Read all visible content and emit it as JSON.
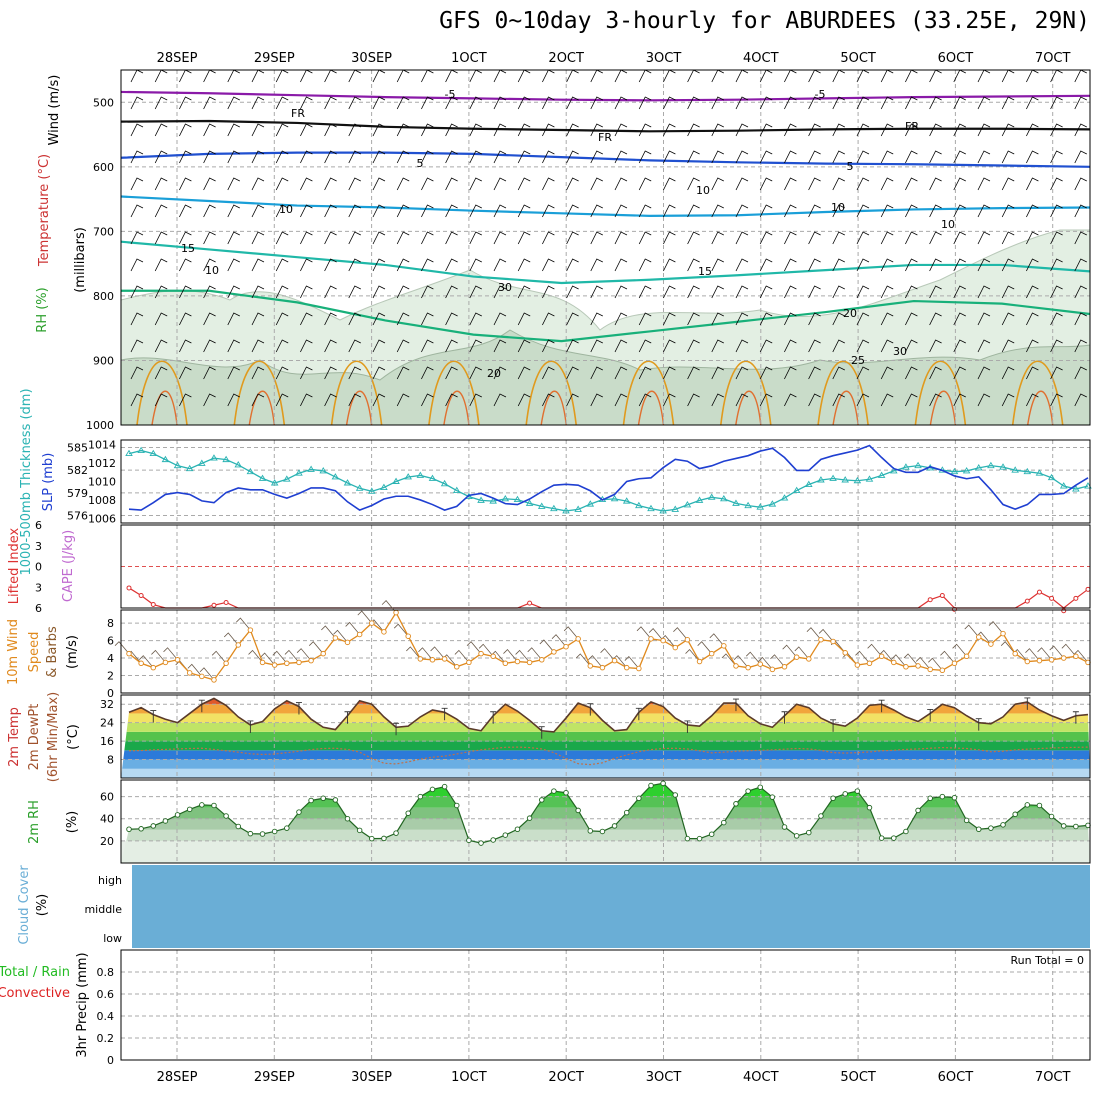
{
  "title": "GFS 0~10day 3-hourly for ABURDEES (33.25E, 29N)",
  "colors": {
    "wind": "#000000",
    "temperature": "#cc3333",
    "rh": "#2ca02c",
    "thickness": "#2ab3b3",
    "slp": "#1f3fd1",
    "lifted_index": "#dd3333",
    "cape": "#c06ad0",
    "wind10m": "#e08a1e",
    "dewpt": "#a0522d",
    "cloud": "#6aaed6",
    "precip_total": "#22bb22",
    "precip_convective": "#dd2222"
  },
  "chart_data": [
    {
      "id": "upper",
      "type": "heatmap",
      "ylabel_parts": [
        "Wind (m/s)",
        "Temperature (°C)",
        "RH (%)"
      ],
      "ylabel_unit": "(millibars)",
      "yticks": [
        "500",
        "600",
        "700",
        "800",
        "900",
        "1000"
      ],
      "ylim": [
        1000,
        450
      ],
      "x_dates": [
        "28SEP",
        "29SEP",
        "30SEP",
        "1OCT",
        "2OCT",
        "3OCT",
        "4OCT",
        "5OCT",
        "6OCT",
        "7OCT"
      ],
      "contour_labels": [
        "-5",
        "-5",
        "FR",
        "FR",
        "FR",
        "5",
        "5",
        "10",
        "10",
        "15",
        "15",
        "20",
        "20",
        "25",
        "30",
        "10",
        "10",
        "10",
        "30"
      ],
      "isotherms": [
        {
          "label": "-5",
          "color": "#8a1aa8",
          "p": [
            484,
            486,
            489,
            492,
            494,
            496,
            497,
            496,
            494,
            492,
            491,
            490
          ]
        },
        {
          "label": "FR",
          "color": "#111111",
          "p": [
            530,
            529,
            532,
            538,
            541,
            543,
            545,
            544,
            542,
            541,
            541,
            542
          ]
        },
        {
          "label": "5",
          "color": "#2050d0",
          "p": [
            586,
            580,
            578,
            578,
            580,
            585,
            590,
            593,
            595,
            596,
            598,
            600
          ]
        },
        {
          "label": "10",
          "color": "#1a9fd8",
          "p": [
            646,
            653,
            660,
            663,
            668,
            672,
            676,
            675,
            670,
            666,
            664,
            663
          ]
        },
        {
          "label": "15",
          "color": "#20b8a8",
          "p": [
            716,
            728,
            740,
            752,
            770,
            780,
            775,
            768,
            760,
            752,
            752,
            762
          ]
        },
        {
          "label": "20",
          "color": "#18b07a",
          "p": [
            792,
            792,
            810,
            838,
            860,
            870,
            855,
            840,
            825,
            808,
            812,
            828
          ]
        }
      ]
    },
    {
      "id": "thickness_slp",
      "type": "line",
      "ylabel_left": "1000-500mb Thickness (dm)",
      "ylabel_right": "SLP (mb)",
      "yticks_left": [
        "585",
        "582",
        "579",
        "576"
      ],
      "yticks_right": [
        "1014",
        "1012",
        "1010",
        "1008",
        "1006"
      ],
      "series": [
        {
          "name": "1000-500mb Thickness",
          "axis": "left",
          "ylim": [
            575,
            586
          ],
          "values": [
            584.2,
            584.6,
            584.2,
            583.4,
            582.6,
            582.2,
            582.9,
            583.6,
            583.4,
            582.7,
            581.8,
            580.9,
            580.3,
            580.8,
            581.6,
            582.1,
            581.9,
            581.1,
            580.3,
            579.6,
            579.2,
            579.7,
            580.5,
            581.1,
            581.3,
            580.9,
            580.2,
            579.3,
            578.5,
            578.0,
            577.9,
            578.2,
            578.1,
            577.6,
            577.2,
            576.9,
            576.6,
            576.8,
            577.5,
            578.1,
            578.2,
            577.9,
            577.3,
            576.9,
            576.6,
            576.8,
            577.4,
            578.0,
            578.4,
            578.2,
            577.6,
            577.3,
            577.1,
            577.5,
            578.3,
            579.3,
            580.1,
            580.7,
            580.9,
            580.7,
            580.6,
            580.8,
            581.3,
            581.9,
            582.4,
            582.6,
            582.3,
            582.0,
            581.8,
            581.9,
            582.3,
            582.6,
            582.4,
            582.0,
            581.8,
            581.6,
            581.0,
            579.9,
            579.5,
            579.9
          ]
        },
        {
          "name": "SLP",
          "axis": "right",
          "ylim": [
            1005.5,
            1014.5
          ],
          "values": [
            1007.0,
            1006.9,
            1007.7,
            1008.6,
            1008.8,
            1008.6,
            1007.9,
            1007.7,
            1008.8,
            1009.3,
            1009.1,
            1009.1,
            1008.6,
            1008.2,
            1008.7,
            1009.3,
            1009.3,
            1009.0,
            1007.8,
            1006.9,
            1007.4,
            1008.1,
            1008.4,
            1008.4,
            1008.0,
            1007.5,
            1006.9,
            1007.3,
            1008.5,
            1008.7,
            1008.2,
            1007.6,
            1007.5,
            1008.1,
            1008.9,
            1009.6,
            1009.7,
            1009.6,
            1009.0,
            1008.0,
            1008.6,
            1010.0,
            1010.3,
            1010.4,
            1011.5,
            1012.4,
            1012.2,
            1011.4,
            1011.7,
            1012.2,
            1012.5,
            1012.8,
            1013.3,
            1013.6,
            1012.6,
            1011.2,
            1011.2,
            1012.4,
            1012.8,
            1013.1,
            1013.4,
            1013.9,
            1012.6,
            1011.4,
            1011.0,
            1011.0,
            1011.6,
            1011.2,
            1010.6,
            1010.3,
            1010.5,
            1009.1,
            1007.5,
            1007.0,
            1007.5,
            1008.6,
            1008.6,
            1008.7,
            1009.6,
            1010.4
          ]
        }
      ]
    },
    {
      "id": "stability",
      "type": "line",
      "ylabel_left": "Lifted Index",
      "ylabel_right": "CAPE (J/kg)",
      "yticks": [
        "-6",
        "-3",
        "0",
        "3",
        "6"
      ],
      "ylim": [
        6,
        -6
      ],
      "series": [
        {
          "name": "Lifted Index",
          "values": [
            3.1,
            4.2,
            5.5,
            6.5,
            6.8,
            6.8,
            6.8,
            5.6,
            5.2,
            6.6,
            6.8,
            6.8,
            6.8,
            6.8,
            6.8,
            6.8,
            6.8,
            6.8,
            6.8,
            6.8,
            6.8,
            6.8,
            6.8,
            6.8,
            6.8,
            6.8,
            6.8,
            6.8,
            6.8,
            6.8,
            6.8,
            6.8,
            6.8,
            5.3,
            6.5,
            6.8,
            6.8,
            6.8,
            6.8,
            6.8,
            6.8,
            6.8,
            6.8,
            6.8,
            6.8,
            6.8,
            6.8,
            6.8,
            6.8,
            6.8,
            6.8,
            6.8,
            6.8,
            6.8,
            6.8,
            6.8,
            6.8,
            6.8,
            6.8,
            6.8,
            6.8,
            6.8,
            6.8,
            6.8,
            6.8,
            6.8,
            4.8,
            4.2,
            6.2,
            6.8,
            6.8,
            6.8,
            6.8,
            6.8,
            5.0,
            3.7,
            4.6,
            6.4,
            4.6,
            3.3
          ]
        }
      ]
    },
    {
      "id": "wind10m",
      "type": "line",
      "ylabel": "10m Wind Speed & Barbs (m/s)",
      "yticks": [
        "0",
        "2",
        "4",
        "6",
        "8"
      ],
      "ylim": [
        0,
        9.5
      ],
      "series": [
        {
          "name": "10m Wind Speed",
          "values": [
            4.5,
            3.4,
            2.9,
            3.5,
            3.8,
            2.3,
            1.9,
            1.5,
            3.4,
            5.5,
            7.2,
            3.5,
            3.2,
            3.4,
            3.5,
            3.7,
            4.5,
            6.3,
            5.8,
            6.7,
            8.0,
            7.0,
            9.2,
            6.5,
            3.9,
            3.8,
            3.9,
            3.0,
            3.5,
            4.5,
            4.2,
            3.4,
            3.6,
            3.5,
            3.8,
            4.7,
            5.3,
            6.2,
            3.1,
            2.9,
            3.7,
            2.9,
            2.8,
            6.2,
            6.0,
            5.2,
            6.1,
            3.6,
            4.5,
            5.4,
            3.1,
            2.9,
            3.3,
            2.7,
            3.0,
            4.1,
            3.9,
            6.1,
            5.9,
            4.6,
            3.2,
            3.4,
            4.2,
            3.5,
            3.0,
            3.1,
            2.7,
            2.6,
            3.4,
            4.2,
            6.4,
            5.6,
            6.8,
            4.5,
            3.6,
            3.7,
            3.8,
            4.0,
            4.2,
            3.5
          ]
        }
      ]
    },
    {
      "id": "temp2m",
      "type": "area",
      "ylabel_parts": [
        "2m Temp",
        "2m DewPt",
        "(6hr Min/Max)"
      ],
      "ylabel_unit": "(°C)",
      "yticks": [
        "8",
        "16",
        "24",
        "32"
      ],
      "ylim": [
        0,
        36
      ],
      "series": [
        {
          "name": "2m Temp",
          "values": [
            28.5,
            30.5,
            27.5,
            25.5,
            24.0,
            28.0,
            32.0,
            34.5,
            31.5,
            26.5,
            23.0,
            24.5,
            30.0,
            33.5,
            31.0,
            25.5,
            22.0,
            21.0,
            27.0,
            33.5,
            32.0,
            26.5,
            22.0,
            22.5,
            26.5,
            29.5,
            28.5,
            25.5,
            21.5,
            20.5,
            27.0,
            32.0,
            29.0,
            25.0,
            20.5,
            20.0,
            26.0,
            32.5,
            30.5,
            25.0,
            20.5,
            21.0,
            28.5,
            33.0,
            31.0,
            26.0,
            23.0,
            22.5,
            27.0,
            32.5,
            32.5,
            27.0,
            23.5,
            22.0,
            27.0,
            32.0,
            30.5,
            26.0,
            23.5,
            22.5,
            26.0,
            31.5,
            32.0,
            29.5,
            26.5,
            24.5,
            28.0,
            32.0,
            30.5,
            27.0,
            24.0,
            23.5,
            26.5,
            32.0,
            33.0,
            29.5,
            27.0,
            25.0,
            27.0,
            27.5
          ]
        },
        {
          "name": "2m DewPt",
          "values": [
            11.8,
            11.9,
            12.2,
            12.4,
            12.6,
            12.8,
            12.9,
            12.4,
            11.8,
            11.2,
            10.5,
            10.2,
            10.4,
            11.0,
            11.6,
            12.3,
            12.8,
            12.9,
            12.4,
            11.2,
            8.5,
            6.4,
            6.1,
            7.0,
            8.2,
            9.0,
            9.5,
            10.4,
            11.4,
            12.2,
            12.8,
            13.3,
            13.4,
            13.2,
            12.6,
            11.0,
            8.5,
            6.2,
            5.8,
            6.6,
            8.5,
            10.0,
            11.4,
            12.3,
            12.8,
            12.9,
            12.6,
            11.8,
            10.9,
            11.2,
            11.6,
            11.8,
            12.0,
            12.2,
            12.5,
            12.8,
            12.6,
            12.0,
            11.0,
            10.8,
            11.0,
            11.3,
            11.8,
            12.0,
            12.4,
            12.6,
            12.9,
            13.2,
            13.0,
            12.8,
            12.2,
            11.4,
            11.6,
            12.2,
            12.5,
            12.8,
            13.0,
            13.2,
            13.3,
            13.4
          ]
        }
      ]
    },
    {
      "id": "rh2m",
      "type": "area",
      "ylabel": "2m RH",
      "ylabel_unit": "(%)",
      "yticks": [
        "20",
        "40",
        "60"
      ],
      "ylim": [
        0,
        75
      ],
      "series": [
        {
          "name": "2m RH",
          "values": [
            30.5,
            30.9,
            33.5,
            38.0,
            43.5,
            48.5,
            52.5,
            52.0,
            42.5,
            33.0,
            26.5,
            26.2,
            28.5,
            31.5,
            46.0,
            56.5,
            58.5,
            57.0,
            40.0,
            29.5,
            22.0,
            22.2,
            27.0,
            45.0,
            60.0,
            66.5,
            69.0,
            52.0,
            20.5,
            18.0,
            20.8,
            25.2,
            30.5,
            40.5,
            57.0,
            65.0,
            63.5,
            47.5,
            29.0,
            28.5,
            33.5,
            45.5,
            58.5,
            70.0,
            72.0,
            61.5,
            22.0,
            22.0,
            26.0,
            36.5,
            53.5,
            65.0,
            68.5,
            59.5,
            32.5,
            24.5,
            27.5,
            42.5,
            58.5,
            62.5,
            65.0,
            50.0,
            22.5,
            22.5,
            28.5,
            47.5,
            58.5,
            60.0,
            59.0,
            38.5,
            30.5,
            31.5,
            34.5,
            44.0,
            52.5,
            52.0,
            42.0,
            33.5,
            33.0,
            34.0
          ]
        }
      ]
    },
    {
      "id": "cloud",
      "type": "area",
      "ylabel": "Cloud Cover",
      "ylabel_unit": "(%)",
      "levels": [
        "high",
        "middle",
        "low"
      ]
    },
    {
      "id": "precip",
      "type": "bar",
      "ylabel_left": "Total / Rain",
      "ylabel_left2": "Convective",
      "ylabel": "3hr Precip (mm)",
      "yticks": [
        "0",
        "0.2",
        "0.4",
        "0.6",
        "0.8"
      ],
      "ylim": [
        0,
        1
      ],
      "run_total": "Run Total = 0",
      "values": []
    }
  ]
}
